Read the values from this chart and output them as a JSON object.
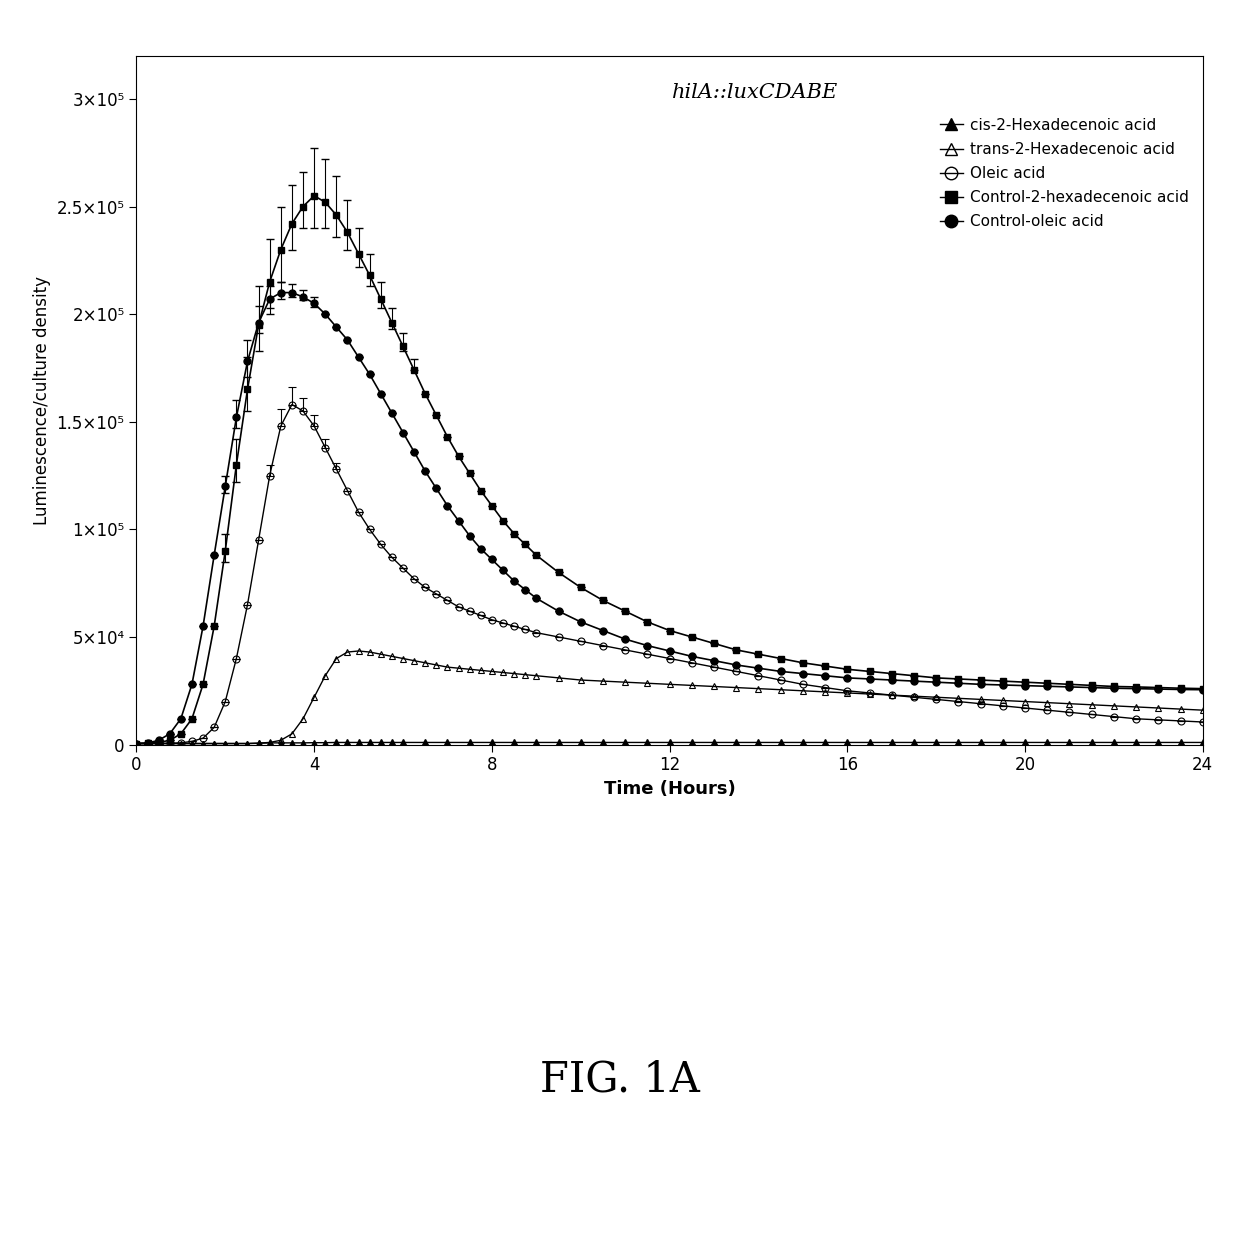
{
  "title": "hilA::luxCDABE",
  "xlabel": "Time (Hours)",
  "ylabel": "Luminescence/culture density",
  "fig_label": "FIG. 1A",
  "xlim": [
    0,
    24
  ],
  "ylim": [
    0,
    320000
  ],
  "yticks": [
    0,
    50000,
    100000,
    150000,
    200000,
    250000,
    300000
  ],
  "ytick_labels": [
    "0",
    "5×10⁴",
    "1×10⁵",
    "1.5×10⁵",
    "2×10⁵",
    "2.5×10⁵",
    "3×10⁵"
  ],
  "xticks": [
    0,
    4,
    8,
    12,
    16,
    20,
    24
  ],
  "series": {
    "cis": {
      "label": "cis-2-Hexadecenoic acid",
      "x": [
        0.0,
        0.25,
        0.5,
        0.75,
        1.0,
        1.25,
        1.5,
        1.75,
        2.0,
        2.25,
        2.5,
        2.75,
        3.0,
        3.25,
        3.5,
        3.75,
        4.0,
        4.25,
        4.5,
        4.75,
        5.0,
        5.25,
        5.5,
        5.75,
        6.0,
        6.5,
        7.0,
        7.5,
        8.0,
        8.5,
        9.0,
        9.5,
        10.0,
        10.5,
        11.0,
        11.5,
        12.0,
        12.5,
        13.0,
        13.5,
        14.0,
        14.5,
        15.0,
        15.5,
        16.0,
        16.5,
        17.0,
        17.5,
        18.0,
        18.5,
        19.0,
        19.5,
        20.0,
        20.5,
        21.0,
        21.5,
        22.0,
        22.5,
        23.0,
        23.5,
        24.0
      ],
      "y": [
        500,
        500,
        500,
        500,
        500,
        500,
        500,
        500,
        500,
        500,
        500,
        600,
        800,
        800,
        800,
        800,
        900,
        900,
        1000,
        1000,
        1000,
        1000,
        1000,
        1000,
        1000,
        1000,
        1000,
        1000,
        1000,
        1000,
        1000,
        1000,
        1000,
        1000,
        1000,
        1000,
        1000,
        1000,
        1000,
        1000,
        1000,
        1000,
        1000,
        1000,
        1000,
        1000,
        1000,
        1000,
        1000,
        1000,
        1000,
        1000,
        1000,
        1000,
        1000,
        1000,
        1000,
        1000,
        1000,
        1000,
        1000
      ]
    },
    "trans": {
      "label": "trans-2-Hexadecenoic acid",
      "x": [
        0.0,
        0.25,
        0.5,
        0.75,
        1.0,
        1.25,
        1.5,
        1.75,
        2.0,
        2.25,
        2.5,
        2.75,
        3.0,
        3.25,
        3.5,
        3.75,
        4.0,
        4.25,
        4.5,
        4.75,
        5.0,
        5.25,
        5.5,
        5.75,
        6.0,
        6.25,
        6.5,
        6.75,
        7.0,
        7.25,
        7.5,
        7.75,
        8.0,
        8.25,
        8.5,
        8.75,
        9.0,
        9.5,
        10.0,
        10.5,
        11.0,
        11.5,
        12.0,
        12.5,
        13.0,
        13.5,
        14.0,
        14.5,
        15.0,
        15.5,
        16.0,
        16.5,
        17.0,
        17.5,
        18.0,
        18.5,
        19.0,
        19.5,
        20.0,
        20.5,
        21.0,
        21.5,
        22.0,
        22.5,
        23.0,
        23.5,
        24.0
      ],
      "y": [
        500,
        500,
        500,
        500,
        500,
        500,
        500,
        500,
        500,
        500,
        500,
        700,
        1000,
        2000,
        5000,
        12000,
        22000,
        32000,
        40000,
        43000,
        43500,
        43000,
        42000,
        41000,
        40000,
        39000,
        38000,
        37000,
        36000,
        35500,
        35000,
        34500,
        34000,
        33500,
        33000,
        32500,
        32000,
        31000,
        30000,
        29500,
        29000,
        28500,
        28000,
        27500,
        27000,
        26500,
        26000,
        25500,
        25000,
        24500,
        24000,
        23500,
        23000,
        22500,
        22000,
        21500,
        21000,
        20500,
        20000,
        19500,
        19000,
        18500,
        18000,
        17500,
        17000,
        16500,
        16000
      ]
    },
    "oleic": {
      "label": "Oleic acid",
      "x": [
        0.0,
        0.25,
        0.5,
        0.75,
        1.0,
        1.25,
        1.5,
        1.75,
        2.0,
        2.25,
        2.5,
        2.75,
        3.0,
        3.25,
        3.5,
        3.75,
        4.0,
        4.25,
        4.5,
        4.75,
        5.0,
        5.25,
        5.5,
        5.75,
        6.0,
        6.25,
        6.5,
        6.75,
        7.0,
        7.25,
        7.5,
        7.75,
        8.0,
        8.25,
        8.5,
        8.75,
        9.0,
        9.5,
        10.0,
        10.5,
        11.0,
        11.5,
        12.0,
        12.5,
        13.0,
        13.5,
        14.0,
        14.5,
        15.0,
        15.5,
        16.0,
        16.5,
        17.0,
        17.5,
        18.0,
        18.5,
        19.0,
        19.5,
        20.0,
        20.5,
        21.0,
        21.5,
        22.0,
        22.5,
        23.0,
        23.5,
        24.0
      ],
      "y": [
        500,
        500,
        500,
        600,
        800,
        1500,
        3000,
        8000,
        20000,
        40000,
        65000,
        95000,
        125000,
        148000,
        158000,
        155000,
        148000,
        138000,
        128000,
        118000,
        108000,
        100000,
        93000,
        87000,
        82000,
        77000,
        73000,
        70000,
        67000,
        64000,
        62000,
        60000,
        58000,
        56500,
        55000,
        53500,
        52000,
        50000,
        48000,
        46000,
        44000,
        42000,
        40000,
        38000,
        36000,
        34000,
        32000,
        30000,
        28000,
        26500,
        25000,
        24000,
        23000,
        22000,
        21000,
        20000,
        19000,
        18000,
        17000,
        16000,
        15000,
        14000,
        13000,
        12000,
        11500,
        11000,
        10500
      ],
      "yerr_upper": [
        0,
        0,
        0,
        0,
        0,
        0,
        0,
        0,
        0,
        0,
        0,
        0,
        5000,
        8000,
        8000,
        6000,
        5000,
        4000,
        3000,
        0,
        0,
        0,
        0,
        0,
        0,
        0,
        0,
        0,
        0,
        0,
        0,
        0,
        0,
        0,
        0,
        0,
        0,
        0,
        0,
        0,
        0,
        0,
        0,
        0,
        0,
        0,
        0,
        0,
        0,
        0,
        0,
        0,
        0,
        0,
        0,
        0,
        0,
        0,
        0,
        0,
        0,
        0,
        0,
        0,
        0,
        0,
        0
      ]
    },
    "ctrl_hex": {
      "label": "Control-2-hexadecenoic acid",
      "x": [
        0.0,
        0.25,
        0.5,
        0.75,
        1.0,
        1.25,
        1.5,
        1.75,
        2.0,
        2.25,
        2.5,
        2.75,
        3.0,
        3.25,
        3.5,
        3.75,
        4.0,
        4.25,
        4.5,
        4.75,
        5.0,
        5.25,
        5.5,
        5.75,
        6.0,
        6.25,
        6.5,
        6.75,
        7.0,
        7.25,
        7.5,
        7.75,
        8.0,
        8.25,
        8.5,
        8.75,
        9.0,
        9.5,
        10.0,
        10.5,
        11.0,
        11.5,
        12.0,
        12.5,
        13.0,
        13.5,
        14.0,
        14.5,
        15.0,
        15.5,
        16.0,
        16.5,
        17.0,
        17.5,
        18.0,
        18.5,
        19.0,
        19.5,
        20.0,
        20.5,
        21.0,
        21.5,
        22.0,
        22.5,
        23.0,
        23.5,
        24.0
      ],
      "y": [
        500,
        600,
        1000,
        2000,
        5000,
        12000,
        28000,
        55000,
        90000,
        130000,
        165000,
        195000,
        215000,
        230000,
        242000,
        250000,
        255000,
        252000,
        246000,
        238000,
        228000,
        218000,
        207000,
        196000,
        185000,
        174000,
        163000,
        153000,
        143000,
        134000,
        126000,
        118000,
        111000,
        104000,
        98000,
        93000,
        88000,
        80000,
        73000,
        67000,
        62000,
        57000,
        53000,
        50000,
        47000,
        44000,
        42000,
        40000,
        38000,
        36500,
        35000,
        34000,
        33000,
        32000,
        31000,
        30500,
        30000,
        29500,
        29000,
        28500,
        28000,
        27500,
        27000,
        26800,
        26500,
        26200,
        26000
      ],
      "yerr_upper": [
        0,
        0,
        0,
        0,
        0,
        0,
        0,
        0,
        8000,
        12000,
        15000,
        18000,
        20000,
        20000,
        18000,
        16000,
        22000,
        20000,
        18000,
        15000,
        12000,
        10000,
        8000,
        7000,
        6000,
        5000,
        0,
        0,
        0,
        0,
        0,
        0,
        0,
        0,
        0,
        0,
        0,
        0,
        0,
        0,
        0,
        0,
        0,
        0,
        0,
        0,
        0,
        0,
        0,
        0,
        0,
        0,
        0,
        0,
        0,
        0,
        0,
        0,
        0,
        0,
        0,
        0,
        0,
        0,
        0,
        0,
        0
      ],
      "yerr_lower": [
        0,
        0,
        0,
        0,
        0,
        0,
        0,
        0,
        5000,
        8000,
        10000,
        12000,
        15000,
        15000,
        12000,
        10000,
        15000,
        12000,
        10000,
        8000,
        6000,
        5000,
        4000,
        3000,
        2000,
        0,
        0,
        0,
        0,
        0,
        0,
        0,
        0,
        0,
        0,
        0,
        0,
        0,
        0,
        0,
        0,
        0,
        0,
        0,
        0,
        0,
        0,
        0,
        0,
        0,
        0,
        0,
        0,
        0,
        0,
        0,
        0,
        0,
        0,
        0,
        0,
        0,
        0,
        0,
        0,
        0,
        0
      ]
    },
    "ctrl_oleic": {
      "label": "Control-oleic acid",
      "x": [
        0.0,
        0.25,
        0.5,
        0.75,
        1.0,
        1.25,
        1.5,
        1.75,
        2.0,
        2.25,
        2.5,
        2.75,
        3.0,
        3.25,
        3.5,
        3.75,
        4.0,
        4.25,
        4.5,
        4.75,
        5.0,
        5.25,
        5.5,
        5.75,
        6.0,
        6.25,
        6.5,
        6.75,
        7.0,
        7.25,
        7.5,
        7.75,
        8.0,
        8.25,
        8.5,
        8.75,
        9.0,
        9.5,
        10.0,
        10.5,
        11.0,
        11.5,
        12.0,
        12.5,
        13.0,
        13.5,
        14.0,
        14.5,
        15.0,
        15.5,
        16.0,
        16.5,
        17.0,
        17.5,
        18.0,
        18.5,
        19.0,
        19.5,
        20.0,
        20.5,
        21.0,
        21.5,
        22.0,
        22.5,
        23.0,
        23.5,
        24.0
      ],
      "y": [
        500,
        700,
        2000,
        5000,
        12000,
        28000,
        55000,
        88000,
        120000,
        152000,
        178000,
        196000,
        207000,
        210000,
        210000,
        208000,
        205000,
        200000,
        194000,
        188000,
        180000,
        172000,
        163000,
        154000,
        145000,
        136000,
        127000,
        119000,
        111000,
        104000,
        97000,
        91000,
        86000,
        81000,
        76000,
        72000,
        68000,
        62000,
        57000,
        53000,
        49000,
        46000,
        43500,
        41000,
        39000,
        37000,
        35500,
        34000,
        33000,
        32000,
        31000,
        30500,
        30000,
        29500,
        29000,
        28500,
        28000,
        27700,
        27400,
        27100,
        26800,
        26500,
        26200,
        26000,
        25800,
        25600,
        25500
      ],
      "yerr_upper": [
        0,
        0,
        0,
        0,
        0,
        0,
        0,
        0,
        5000,
        8000,
        10000,
        8000,
        6000,
        5000,
        4000,
        3000,
        3000,
        0,
        0,
        0,
        0,
        0,
        0,
        0,
        0,
        0,
        0,
        0,
        0,
        0,
        0,
        0,
        0,
        0,
        0,
        0,
        0,
        0,
        0,
        0,
        0,
        0,
        0,
        0,
        0,
        0,
        0,
        0,
        0,
        0,
        0,
        0,
        0,
        0,
        0,
        0,
        0,
        0,
        0,
        0,
        0,
        0,
        0,
        0,
        0,
        0,
        0
      ],
      "yerr_lower": [
        0,
        0,
        0,
        0,
        0,
        0,
        0,
        0,
        3000,
        5000,
        7000,
        5000,
        4000,
        3000,
        2000,
        1500,
        1500,
        0,
        0,
        0,
        0,
        0,
        0,
        0,
        0,
        0,
        0,
        0,
        0,
        0,
        0,
        0,
        0,
        0,
        0,
        0,
        0,
        0,
        0,
        0,
        0,
        0,
        0,
        0,
        0,
        0,
        0,
        0,
        0,
        0,
        0,
        0,
        0,
        0,
        0,
        0,
        0,
        0,
        0,
        0,
        0,
        0,
        0,
        0,
        0,
        0,
        0
      ]
    }
  }
}
